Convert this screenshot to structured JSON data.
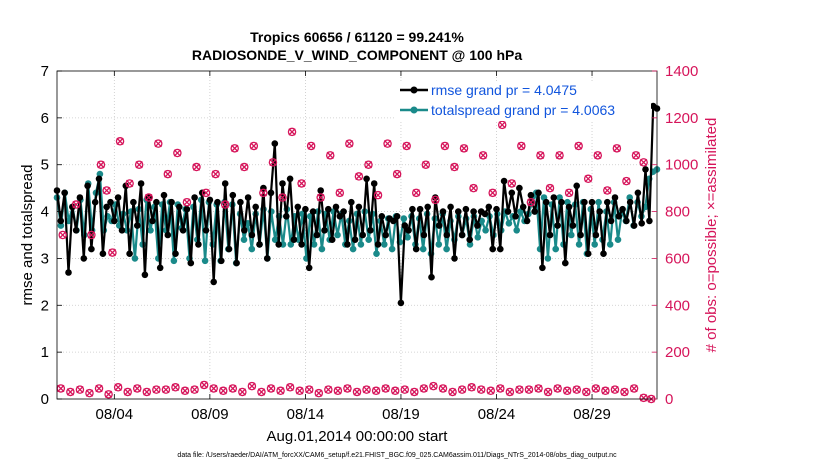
{
  "chart_data": {
    "type": "line",
    "title": "Tropics 60656 / 61120 = 99.241%",
    "subtitle": "RADIOSONDE_V_WIND_COMPONENT @ 100 hPa",
    "xlabel": "Aug.01,2014 00:00:00 start",
    "ylabel_left": "rmse and totalspread",
    "ylabel_right": "# of obs: o=possible; ×=assimilated",
    "footer": "data file: /Users/raeder/DAI/ATM_forcXX/CAM6_setup/f.e21.FHIST_BGC.f09_025.CAM6assim.011/Diags_NTrS_2014-08/obs_diag_output.nc",
    "x_start_day": 1,
    "x_end_day": 32.4,
    "xlim": [
      1,
      32.4
    ],
    "ylim_left": [
      0,
      7
    ],
    "ylim_right": [
      0,
      1400
    ],
    "x_ticks": [
      {
        "day": 4,
        "label": "08/04"
      },
      {
        "day": 9,
        "label": "08/09"
      },
      {
        "day": 14,
        "label": "08/14"
      },
      {
        "day": 19,
        "label": "08/19"
      },
      {
        "day": 24,
        "label": "08/24"
      },
      {
        "day": 29,
        "label": "08/29"
      }
    ],
    "y_ticks_left": [
      0,
      1,
      2,
      3,
      4,
      5,
      6,
      7
    ],
    "y_ticks_right": [
      0,
      200,
      400,
      600,
      800,
      1000,
      1200,
      1400
    ],
    "grid": true,
    "legend_position": "top-right",
    "colors": {
      "rmse": "#000000",
      "spread": "#1a8a8a",
      "obs": "#d6145a",
      "legend_text": "#1155dd",
      "left_axis": "#000000",
      "right_axis": "#d6145a",
      "grid": "#c8c8c8"
    },
    "series": [
      {
        "name": "rmse grand pr = 4.0475",
        "key": "rmse",
        "values": [
          4.45,
          3.8,
          4.4,
          2.7,
          4.1,
          3.6,
          4.3,
          3.0,
          4.55,
          3.2,
          4.2,
          4.7,
          3.1,
          4.1,
          4.2,
          3.8,
          4.3,
          3.6,
          4.55,
          3.1,
          4.2,
          3.7,
          4.6,
          2.65,
          4.3,
          3.8,
          4.2,
          2.8,
          4.35,
          3.5,
          4.2,
          3.1,
          4.1,
          3.6,
          4.05,
          2.9,
          4.3,
          3.3,
          4.4,
          3.6,
          4.25,
          2.5,
          4.2,
          2.95,
          4.6,
          3.2,
          4.35,
          2.9,
          4.2,
          3.6,
          4.3,
          3.5,
          4.1,
          3.3,
          4.5,
          3.0,
          4.4,
          5.45,
          3.3,
          4.6,
          3.9,
          4.7,
          3.4,
          4.1,
          3.3,
          4.05,
          2.8,
          4.0,
          3.5,
          4.45,
          3.6,
          4.05,
          3.4,
          4.1,
          3.9,
          4.0,
          3.3,
          4.2,
          3.4,
          4.1,
          3.5,
          4.7,
          3.6,
          4.6,
          3.3,
          3.9,
          3.5,
          3.85,
          3.8,
          3.9,
          2.05,
          3.7,
          3.6,
          4.05,
          3.2,
          4.05,
          3.5,
          4.1,
          2.6,
          4.3,
          3.7,
          4.0,
          3.5,
          4.1,
          3.0,
          4.0,
          3.5,
          4.05,
          3.4,
          4.0,
          3.7,
          4.0,
          3.95,
          4.1,
          3.2,
          4.05,
          3.2,
          4.65,
          4.0,
          4.4,
          3.9,
          4.5,
          4.1,
          3.8,
          4.35,
          4.0,
          4.4,
          2.8,
          4.2,
          3.5,
          4.3,
          3.7,
          4.2,
          2.9,
          4.1,
          3.7,
          4.55,
          3.5,
          4.2,
          3.1,
          4.2,
          3.5,
          4.0,
          3.1,
          4.2,
          3.8,
          4.3,
          3.9,
          4.05,
          3.8,
          4.2,
          3.7,
          4.4,
          3.75,
          4.9,
          3.8,
          6.25,
          6.2
        ]
      },
      {
        "name": "totalspread grand pr = 4.0063",
        "key": "spread",
        "values": [
          4.3,
          3.7,
          4.4,
          3.8,
          4.1,
          3.6,
          4.25,
          3.5,
          4.6,
          3.6,
          4.4,
          4.8,
          3.6,
          3.9,
          3.8,
          4.15,
          3.7,
          3.95,
          3.6,
          4.0,
          3.0,
          4.05,
          3.3,
          4.25,
          3.6,
          4.1,
          3.0,
          4.15,
          3.6,
          4.2,
          2.95,
          4.15,
          3.65,
          4.05,
          3.0,
          4.1,
          3.4,
          4.25,
          2.95,
          4.2,
          3.3,
          4.15,
          2.95,
          4.2,
          3.2,
          4.15,
          2.9,
          3.95,
          3.4,
          3.75,
          3.2,
          3.95,
          3.3,
          4.05,
          3.0,
          4.0,
          3.4,
          3.9,
          3.3,
          4.05,
          3.3,
          3.9,
          3.4,
          3.95,
          3.0,
          3.9,
          3.3,
          4.0,
          3.2,
          3.95,
          3.4,
          4.0,
          3.5,
          3.95,
          3.3,
          3.8,
          3.2,
          3.95,
          3.3,
          4.0,
          3.4,
          3.95,
          3.1,
          3.8,
          3.3,
          3.85,
          3.2,
          3.9,
          3.35,
          3.85,
          3.45,
          3.9,
          3.3,
          3.85,
          3.2,
          3.95,
          3.1,
          3.85,
          3.3,
          3.95,
          3.2,
          3.8,
          3.4,
          3.9,
          3.5,
          3.85,
          3.3,
          3.9,
          3.45,
          3.8,
          3.6,
          3.9,
          3.5,
          3.95,
          3.6,
          4.0,
          3.75,
          3.9,
          3.6,
          4.0,
          3.8,
          3.95,
          4.2,
          4.4,
          3.2,
          4.3,
          3.0,
          4.15,
          3.2,
          4.3,
          3.3,
          4.2,
          3.5,
          4.15,
          3.3,
          4.2,
          3.1,
          4.05,
          3.3,
          4.2,
          3.4,
          4.0,
          3.3,
          4.2,
          3.4,
          4.0,
          3.8,
          4.3,
          3.7,
          4.2,
          3.9,
          4.1,
          4.7,
          4.85,
          4.9
        ]
      }
    ],
    "obs_possible": [
      {
        "day": 1.3,
        "value": 700
      },
      {
        "day": 2.0,
        "value": 830
      },
      {
        "day": 2.8,
        "value": 700
      },
      {
        "day": 3.3,
        "value": 1000
      },
      {
        "day": 3.6,
        "value": 890
      },
      {
        "day": 3.9,
        "value": 625
      },
      {
        "day": 4.3,
        "value": 1100
      },
      {
        "day": 4.8,
        "value": 920
      },
      {
        "day": 5.3,
        "value": 1000
      },
      {
        "day": 5.8,
        "value": 860
      },
      {
        "day": 6.3,
        "value": 1090
      },
      {
        "day": 6.8,
        "value": 960
      },
      {
        "day": 7.3,
        "value": 1050
      },
      {
        "day": 7.8,
        "value": 840
      },
      {
        "day": 8.3,
        "value": 990
      },
      {
        "day": 8.8,
        "value": 880
      },
      {
        "day": 9.3,
        "value": 960
      },
      {
        "day": 9.8,
        "value": 830
      },
      {
        "day": 10.3,
        "value": 1070
      },
      {
        "day": 10.8,
        "value": 990
      },
      {
        "day": 11.3,
        "value": 1080
      },
      {
        "day": 11.8,
        "value": 880
      },
      {
        "day": 12.3,
        "value": 1010
      },
      {
        "day": 12.8,
        "value": 860
      },
      {
        "day": 13.3,
        "value": 1140
      },
      {
        "day": 13.8,
        "value": 920
      },
      {
        "day": 14.3,
        "value": 1080
      },
      {
        "day": 14.8,
        "value": 860
      },
      {
        "day": 15.3,
        "value": 1040
      },
      {
        "day": 15.8,
        "value": 880
      },
      {
        "day": 16.3,
        "value": 1090
      },
      {
        "day": 16.8,
        "value": 950
      },
      {
        "day": 17.3,
        "value": 1000
      },
      {
        "day": 17.8,
        "value": 870
      },
      {
        "day": 18.3,
        "value": 1090
      },
      {
        "day": 18.8,
        "value": 960
      },
      {
        "day": 19.3,
        "value": 1080
      },
      {
        "day": 19.8,
        "value": 880
      },
      {
        "day": 20.3,
        "value": 1000
      },
      {
        "day": 20.8,
        "value": 850
      },
      {
        "day": 21.3,
        "value": 1080
      },
      {
        "day": 21.8,
        "value": 990
      },
      {
        "day": 22.3,
        "value": 1070
      },
      {
        "day": 22.8,
        "value": 900
      },
      {
        "day": 23.3,
        "value": 1040
      },
      {
        "day": 23.8,
        "value": 880
      },
      {
        "day": 24.3,
        "value": 1170
      },
      {
        "day": 24.8,
        "value": 920
      },
      {
        "day": 25.3,
        "value": 1080
      },
      {
        "day": 25.8,
        "value": 840
      },
      {
        "day": 26.3,
        "value": 1040
      },
      {
        "day": 26.8,
        "value": 900
      },
      {
        "day": 27.3,
        "value": 1040
      },
      {
        "day": 27.8,
        "value": 880
      },
      {
        "day": 28.3,
        "value": 1080
      },
      {
        "day": 28.8,
        "value": 940
      },
      {
        "day": 29.3,
        "value": 1040
      },
      {
        "day": 29.8,
        "value": 890
      },
      {
        "day": 30.3,
        "value": 1070
      },
      {
        "day": 30.8,
        "value": 930
      },
      {
        "day": 31.3,
        "value": 1040
      },
      {
        "day": 31.7,
        "value": 1010
      }
    ],
    "obs_assimilated": [
      {
        "day": 1.2,
        "value": 45
      },
      {
        "day": 1.7,
        "value": 30
      },
      {
        "day": 2.2,
        "value": 40
      },
      {
        "day": 2.7,
        "value": 25
      },
      {
        "day": 3.2,
        "value": 45
      },
      {
        "day": 3.7,
        "value": 20
      },
      {
        "day": 4.2,
        "value": 50
      },
      {
        "day": 4.7,
        "value": 30
      },
      {
        "day": 5.2,
        "value": 45
      },
      {
        "day": 5.7,
        "value": 30
      },
      {
        "day": 6.2,
        "value": 40
      },
      {
        "day": 6.7,
        "value": 40
      },
      {
        "day": 7.2,
        "value": 50
      },
      {
        "day": 7.7,
        "value": 35
      },
      {
        "day": 8.2,
        "value": 40
      },
      {
        "day": 8.7,
        "value": 60
      },
      {
        "day": 9.2,
        "value": 45
      },
      {
        "day": 9.7,
        "value": 35
      },
      {
        "day": 10.2,
        "value": 45
      },
      {
        "day": 10.7,
        "value": 30
      },
      {
        "day": 11.2,
        "value": 55
      },
      {
        "day": 11.7,
        "value": 30
      },
      {
        "day": 12.2,
        "value": 45
      },
      {
        "day": 12.7,
        "value": 35
      },
      {
        "day": 13.2,
        "value": 50
      },
      {
        "day": 13.7,
        "value": 35
      },
      {
        "day": 14.2,
        "value": 40
      },
      {
        "day": 14.7,
        "value": 25
      },
      {
        "day": 15.2,
        "value": 40
      },
      {
        "day": 15.7,
        "value": 35
      },
      {
        "day": 16.2,
        "value": 45
      },
      {
        "day": 16.7,
        "value": 30
      },
      {
        "day": 17.2,
        "value": 40
      },
      {
        "day": 17.7,
        "value": 35
      },
      {
        "day": 18.2,
        "value": 45
      },
      {
        "day": 18.7,
        "value": 35
      },
      {
        "day": 19.2,
        "value": 40
      },
      {
        "day": 19.7,
        "value": 30
      },
      {
        "day": 20.2,
        "value": 45
      },
      {
        "day": 20.7,
        "value": 55
      },
      {
        "day": 21.2,
        "value": 45
      },
      {
        "day": 21.7,
        "value": 30
      },
      {
        "day": 22.2,
        "value": 40
      },
      {
        "day": 22.7,
        "value": 50
      },
      {
        "day": 23.2,
        "value": 40
      },
      {
        "day": 23.7,
        "value": 35
      },
      {
        "day": 24.2,
        "value": 45
      },
      {
        "day": 24.7,
        "value": 30
      },
      {
        "day": 25.2,
        "value": 40
      },
      {
        "day": 25.7,
        "value": 40
      },
      {
        "day": 26.2,
        "value": 45
      },
      {
        "day": 26.7,
        "value": 30
      },
      {
        "day": 27.2,
        "value": 45
      },
      {
        "day": 27.7,
        "value": 35
      },
      {
        "day": 28.2,
        "value": 40
      },
      {
        "day": 28.7,
        "value": 30
      },
      {
        "day": 29.2,
        "value": 45
      },
      {
        "day": 29.7,
        "value": 35
      },
      {
        "day": 30.2,
        "value": 40
      },
      {
        "day": 30.7,
        "value": 30
      },
      {
        "day": 31.2,
        "value": 45
      },
      {
        "day": 31.7,
        "value": 5
      },
      {
        "day": 32.1,
        "value": 0
      }
    ]
  }
}
